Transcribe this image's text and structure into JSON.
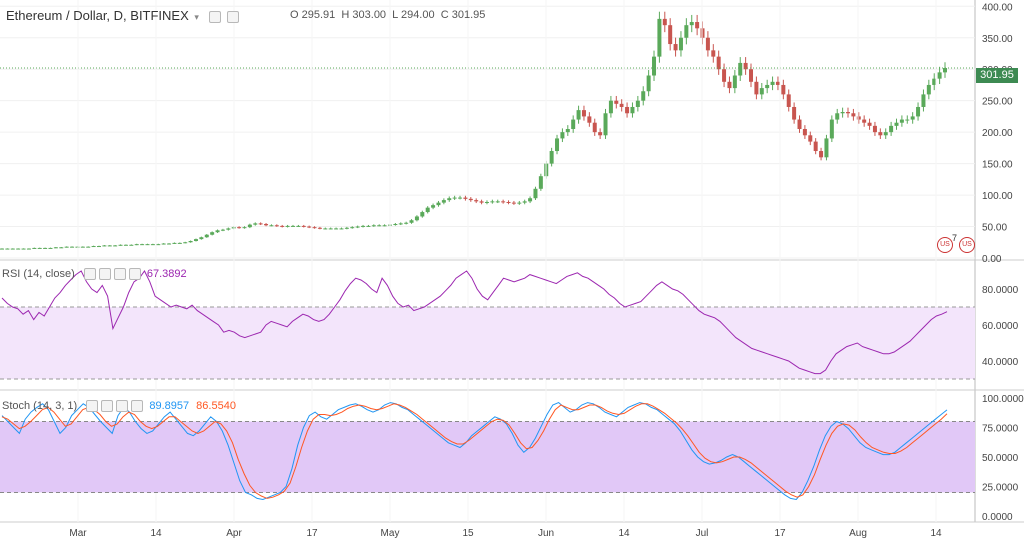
{
  "header": {
    "ticker": "Ethereum / Dollar, D, BITFINEX",
    "ohlc": {
      "o": "295.91",
      "h": "303.00",
      "l": "294.00",
      "c": "301.95"
    }
  },
  "price_badge": "301.95",
  "events_count": "7",
  "colors": {
    "up": "#5aa95a",
    "down": "#c8554f",
    "rsi": "#9c27b0",
    "rsi_band": "#f3e5fb",
    "stoch_k": "#2196f3",
    "stoch_d": "#ff5722",
    "stoch_band": "#e1c8f7"
  },
  "chart_data": [
    {
      "type": "candlestick",
      "title": "Ethereum / Dollar, D, BITFINEX",
      "ylim": [
        0,
        410
      ],
      "yticks": [
        "400.00",
        "350.00",
        "300.00",
        "250.00",
        "200.00",
        "150.00",
        "100.00",
        "50.00",
        "0.00"
      ],
      "last_price": 301.95,
      "close_series": [
        15,
        15,
        15,
        15,
        15,
        15,
        16,
        16,
        16,
        16,
        17,
        17,
        18,
        18,
        18,
        18,
        18,
        19,
        19,
        20,
        20,
        20,
        21,
        21,
        21,
        22,
        22,
        22,
        22,
        22,
        23,
        23,
        24,
        24,
        25,
        27,
        30,
        33,
        37,
        41,
        44,
        45,
        47,
        49,
        48,
        49,
        53,
        55,
        54,
        52,
        52,
        51,
        50,
        51,
        51,
        51,
        50,
        49,
        48,
        47,
        47,
        47,
        47,
        47,
        48,
        49,
        50,
        51,
        51,
        52,
        52,
        52,
        53,
        54,
        55,
        56,
        60,
        66,
        73,
        80,
        84,
        88,
        92,
        95,
        96,
        96,
        94,
        92,
        90,
        88,
        89,
        90,
        90,
        89,
        88,
        87,
        88,
        90,
        95,
        110,
        130,
        150,
        170,
        190,
        200,
        205,
        220,
        235,
        225,
        215,
        200,
        195,
        230,
        250,
        245,
        240,
        230,
        240,
        250,
        265,
        290,
        320,
        380,
        370,
        340,
        330,
        350,
        370,
        375,
        365,
        350,
        330,
        320,
        300,
        280,
        270,
        290,
        310,
        300,
        280,
        260,
        270,
        275,
        280,
        275,
        260,
        240,
        220,
        205,
        195,
        185,
        170,
        160,
        190,
        220,
        230,
        232,
        230,
        225,
        220,
        215,
        210,
        200,
        195,
        200,
        210,
        215,
        220,
        220,
        225,
        240,
        260,
        275,
        285,
        295,
        301.95
      ],
      "dates": [
        "Mar",
        "14",
        "Apr",
        "17",
        "May",
        "15",
        "Jun",
        "14",
        "Jul",
        "17",
        "Aug",
        "14"
      ]
    },
    {
      "type": "line",
      "title": "RSI (14, close)",
      "value_label": "67.3892",
      "ylim": [
        25,
        95
      ],
      "yticks": [
        "80.0000",
        "60.0000",
        "40.0000"
      ],
      "bands": [
        30,
        70
      ],
      "series": [
        {
          "values": [
            75,
            72,
            70,
            69,
            66,
            68,
            63,
            67,
            65,
            70,
            75,
            78,
            82,
            85,
            88,
            90,
            84,
            80,
            78,
            82,
            76,
            58,
            64,
            70,
            78,
            84,
            86,
            90,
            84,
            76,
            74,
            72,
            70,
            71,
            70,
            69,
            71,
            68,
            66,
            64,
            62,
            60,
            56,
            57,
            56,
            54,
            53,
            54,
            55,
            56,
            60,
            62,
            61,
            60,
            59,
            62,
            64,
            66,
            65,
            63,
            62,
            63,
            66,
            70,
            74,
            79,
            83,
            86,
            85,
            83,
            80,
            78,
            86,
            82,
            76,
            72,
            70,
            71,
            68,
            69,
            70,
            72,
            74,
            76,
            79,
            82,
            86,
            88,
            90,
            86,
            80,
            76,
            74,
            78,
            82,
            86,
            85,
            84,
            85,
            86,
            88,
            87,
            86,
            85,
            84,
            83,
            85,
            87,
            88,
            89,
            87,
            86,
            84,
            82,
            80,
            77,
            75,
            72,
            70,
            71,
            72,
            73,
            76,
            79,
            82,
            84,
            82,
            80,
            79,
            77,
            74,
            71,
            68,
            66,
            65,
            64,
            62,
            59,
            56,
            53,
            51,
            49,
            47,
            46,
            45,
            44,
            43,
            42,
            41,
            40,
            38,
            36,
            35,
            34,
            33,
            33,
            35,
            40,
            44,
            46,
            48,
            49,
            50,
            48,
            47,
            46,
            45,
            44,
            44,
            45,
            47,
            49,
            51,
            54,
            57,
            60,
            63,
            65,
            66,
            67.3892
          ]
        }
      ]
    },
    {
      "type": "line",
      "title": "Stoch (14, 3, 1)",
      "value_labels": [
        "89.8957",
        "86.5540"
      ],
      "ylim": [
        -5,
        105
      ],
      "yticks": [
        "100.0000",
        "75.0000",
        "50.0000",
        "25.0000",
        "0.0000"
      ],
      "bands": [
        20,
        80
      ],
      "series": [
        {
          "values": [
            85,
            80,
            75,
            70,
            82,
            88,
            92,
            95,
            90,
            80,
            70,
            75,
            85,
            90,
            95,
            92,
            86,
            80,
            75,
            70,
            85,
            92,
            88,
            80,
            74,
            70,
            72,
            78,
            84,
            88,
            82,
            76,
            70,
            68,
            72,
            78,
            84,
            80,
            72,
            60,
            45,
            30,
            20,
            18,
            15,
            14,
            16,
            18,
            20,
            25,
            40,
            60,
            75,
            85,
            88,
            84,
            82,
            86,
            90,
            92,
            94,
            95,
            93,
            90,
            88,
            90,
            94,
            96,
            95,
            92,
            90,
            86,
            82,
            78,
            74,
            70,
            66,
            62,
            60,
            58,
            62,
            68,
            72,
            76,
            80,
            84,
            82,
            78,
            70,
            60,
            54,
            58,
            66,
            76,
            86,
            94,
            96,
            92,
            88,
            90,
            94,
            96,
            95,
            92,
            88,
            86,
            84,
            88,
            92,
            94,
            96,
            95,
            92,
            90,
            86,
            82,
            78,
            72,
            64,
            56,
            50,
            46,
            44,
            45,
            47,
            50,
            52,
            50,
            46,
            42,
            38,
            34,
            30,
            26,
            22,
            18,
            15,
            14,
            20,
            30,
            42,
            56,
            68,
            76,
            80,
            78,
            74,
            68,
            62,
            58,
            56,
            54,
            52,
            52,
            54,
            58,
            62,
            66,
            70,
            74,
            78,
            82,
            86,
            89.8957
          ]
        },
        {
          "values": [
            84,
            82,
            78,
            74,
            76,
            80,
            85,
            90,
            92,
            88,
            82,
            76,
            78,
            84,
            90,
            92,
            90,
            86,
            80,
            76,
            78,
            84,
            88,
            86,
            80,
            76,
            74,
            76,
            80,
            84,
            84,
            80,
            76,
            72,
            70,
            72,
            76,
            80,
            78,
            72,
            62,
            48,
            36,
            26,
            20,
            17,
            15,
            16,
            18,
            21,
            28,
            42,
            58,
            72,
            82,
            86,
            86,
            85,
            86,
            88,
            91,
            93,
            94,
            93,
            91,
            90,
            91,
            93,
            95,
            94,
            92,
            89,
            86,
            82,
            78,
            74,
            70,
            66,
            63,
            61,
            61,
            64,
            68,
            72,
            76,
            80,
            82,
            81,
            77,
            70,
            62,
            57,
            58,
            64,
            72,
            82,
            90,
            94,
            92,
            90,
            90,
            92,
            94,
            94,
            92,
            89,
            87,
            86,
            87,
            90,
            93,
            95,
            95,
            93,
            90,
            87,
            83,
            79,
            74,
            68,
            61,
            54,
            49,
            46,
            45,
            46,
            48,
            50,
            50,
            48,
            45,
            41,
            37,
            33,
            29,
            25,
            21,
            18,
            16,
            18,
            25,
            35,
            48,
            60,
            70,
            76,
            78,
            77,
            73,
            67,
            62,
            58,
            56,
            54,
            53,
            53,
            55,
            58,
            62,
            66,
            70,
            74,
            78,
            82,
            86.554
          ]
        }
      ]
    }
  ]
}
